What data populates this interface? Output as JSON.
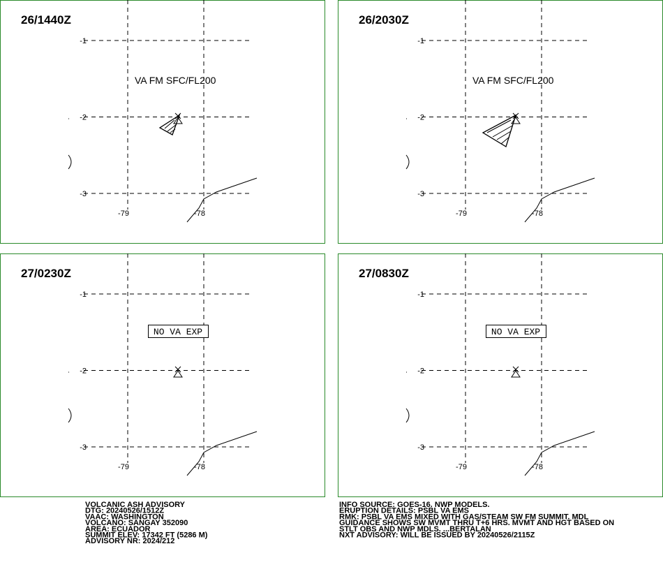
{
  "panels": [
    {
      "time": "26/1440Z",
      "label": "VA FM SFC/FL200"
    },
    {
      "time": "26/2030Z",
      "label": "VA FM SFC/FL200"
    },
    {
      "time": "27/0230Z",
      "label": "NO VA EXP"
    },
    {
      "time": "27/0830Z",
      "label": "NO VA EXP"
    }
  ],
  "lat_ticks": [
    -1,
    -2,
    -3
  ],
  "lon_ticks": [
    -79,
    -78
  ],
  "advisory": {
    "left": [
      "VOLCANIC ASH ADVISORY",
      "DTG: 20240526/1512Z",
      "VAAC: WASHINGTON",
      "VOLCANO: SANGAY 352090",
      "AREA: ECUADOR",
      "SUMMIT ELEV: 17342 FT (5286 M)",
      "ADVISORY NR: 2024/212"
    ],
    "right": [
      "INFO SOURCE: GOES-16. NWP MODELS.",
      "ERUPTION DETAILS: PSBL VA EMS",
      "RMK: PSBL VA EMS MIXED WITH GAS/STEAM SW FM SUMMIT. MDL",
      "GUIDANCE SHOWS SW MVMT THRU T+6 HRS. MVMT AND HGT BASED ON",
      "STLT OBS AND NWP MDLS. ...BERTALAN",
      "NXT ADVISORY: WILL BE ISSUED BY 20240526/2115Z"
    ]
  }
}
